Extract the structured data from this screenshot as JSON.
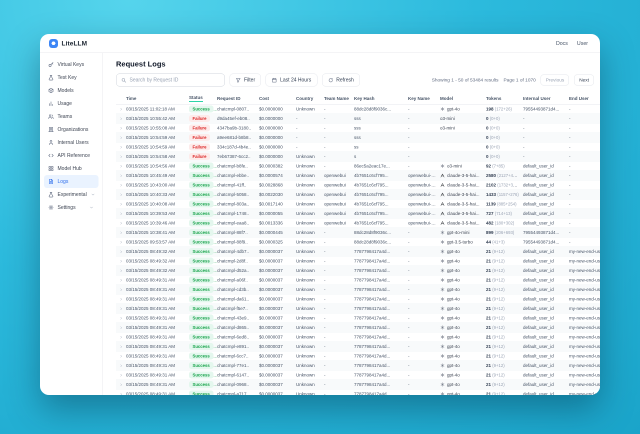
{
  "colors": {
    "accent_blue": "#2f6feb",
    "success_green": "#16a34a",
    "failure_red": "#dc2626",
    "background_teal": "#2cbadd"
  },
  "navbar": {
    "brand": "LiteLLM",
    "docs": "Docs",
    "user": "User"
  },
  "sidebar": {
    "items": [
      {
        "label": "Virtual Keys",
        "icon": "key"
      },
      {
        "label": "Test Key",
        "icon": "beaker"
      },
      {
        "label": "Models",
        "icon": "box"
      },
      {
        "label": "Usage",
        "icon": "chart"
      },
      {
        "label": "Teams",
        "icon": "users"
      },
      {
        "label": "Organizations",
        "icon": "building"
      },
      {
        "label": "Internal Users",
        "icon": "user"
      },
      {
        "label": "API Reference",
        "icon": "code"
      },
      {
        "label": "Model Hub",
        "icon": "grid"
      },
      {
        "label": "Logs",
        "icon": "file",
        "selected": true
      },
      {
        "label": "Experimental",
        "icon": "flask",
        "chevron": true
      },
      {
        "label": "Settings",
        "icon": "gear",
        "chevron": true
      }
    ]
  },
  "page": {
    "title": "Request Logs"
  },
  "toolbar": {
    "search_placeholder": "Search by Request ID",
    "search_icon": "search",
    "filter_label": "Filter",
    "filter_icon": "funnel",
    "range_label": "Last 24 Hours",
    "range_icon": "calendar",
    "refresh_label": "Refresh",
    "refresh_icon": "refresh",
    "showing": "Showing 1 - 50 of 53484 results",
    "page_info": "Page 1 of 1070",
    "prev_label": "Previous",
    "next_label": "Next"
  },
  "table": {
    "columns": [
      "Time",
      "Status",
      "Request ID",
      "Cost",
      "Country",
      "Team Name",
      "Key Hash",
      "Key Name",
      "Model",
      "Tokens",
      "Internal User",
      "End User"
    ],
    "sorted_column": "Status",
    "rows": [
      {
        "time": "03/15/2025 11:02:18 AM",
        "status": "Success",
        "request_id": "chatcmpl-0807..",
        "cost": "$0.0000000",
        "country": "Unknown",
        "team": "-",
        "key_hash": "88dc28d8f9036c...",
        "key_name": "-",
        "model": "gpt-4o",
        "provider": "openai",
        "tokens": "198",
        "tokens_detail": "(172+26)",
        "internal_user": "79554493871d4...",
        "end_user": "-"
      },
      {
        "time": "03/15/2025 10:55:42 AM",
        "status": "Failure",
        "request_id": "d9da45ef-eb08..",
        "cost": "$0.0000000",
        "country": "-",
        "team": "-",
        "key_hash": "sss",
        "key_name": "-",
        "model": "o3-mini",
        "provider": "none",
        "tokens": "0",
        "tokens_detail": "(0+0)",
        "internal_user": "-",
        "end_user": "-"
      },
      {
        "time": "03/15/2025 10:55:08 AM",
        "status": "Failure",
        "request_id": "4347ba9b-3180..",
        "cost": "$0.0000000",
        "country": "-",
        "team": "-",
        "key_hash": "sss",
        "key_name": "-",
        "model": "o3-mini",
        "provider": "none",
        "tokens": "0",
        "tokens_detail": "(0+0)",
        "internal_user": "-",
        "end_user": "-"
      },
      {
        "time": "03/15/2025 10:54:59 AM",
        "status": "Failure",
        "request_id": "a9ee681d-b8b8..",
        "cost": "$0.0000000",
        "country": "-",
        "team": "-",
        "key_hash": "sss",
        "key_name": "-",
        "model": "",
        "provider": "none",
        "tokens": "0",
        "tokens_detail": "(0+0)",
        "internal_user": "-",
        "end_user": "-"
      },
      {
        "time": "03/15/2025 10:54:59 AM",
        "status": "Failure",
        "request_id": "334c187d-4b4e..",
        "cost": "$0.0000000",
        "country": "-",
        "team": "-",
        "key_hash": "ss",
        "key_name": "-",
        "model": "",
        "provider": "none",
        "tokens": "0",
        "tokens_detail": "(0+0)",
        "internal_user": "-",
        "end_user": "-"
      },
      {
        "time": "03/15/2025 10:54:58 AM",
        "status": "Failure",
        "request_id": "7eb67387-6cc2..",
        "cost": "$0.0000000",
        "country": "Unknown",
        "team": "-",
        "key_hash": "s",
        "key_name": "-",
        "model": "",
        "provider": "none",
        "tokens": "0",
        "tokens_detail": "(0+0)",
        "internal_user": "-",
        "end_user": "-"
      },
      {
        "time": "03/15/2025 10:54:56 AM",
        "status": "Success",
        "request_id": "chatcmpl-b8fe..",
        "cost": "$0.0000382",
        "country": "Unknown",
        "team": "-",
        "key_hash": "86ec5a2eac17e...",
        "key_name": "-",
        "model": "o3-mini",
        "provider": "openai",
        "tokens": "92",
        "tokens_detail": "(7+85)",
        "internal_user": "default_user_id",
        "end_user": "-"
      },
      {
        "time": "03/15/2025 10:45:49 AM",
        "status": "Success",
        "request_id": "chatcmpl-ebbe..",
        "cost": "$0.0000574",
        "country": "Unknown",
        "team": "openwebui",
        "key_hash": "4b7651c6cf795...",
        "key_name": "openwebui-key-2",
        "model": "claude-3-5-hai...",
        "provider": "anthropic",
        "tokens": "2580",
        "tokens_detail": "(2127+453)",
        "internal_user": "default_user_id",
        "end_user": "-"
      },
      {
        "time": "03/15/2025 10:43:00 AM",
        "status": "Success",
        "request_id": "chatcmpl-41ff..",
        "cost": "$0.0028868",
        "country": "Unknown",
        "team": "openwebui",
        "key_hash": "4b7651c6cf795...",
        "key_name": "openwebui-key-2",
        "model": "claude-3-5-hai...",
        "provider": "anthropic",
        "tokens": "2102",
        "tokens_detail": "(1732+370)",
        "internal_user": "default_user_id",
        "end_user": "-"
      },
      {
        "time": "03/15/2025 10:40:33 AM",
        "status": "Success",
        "request_id": "chatcmpl-5058..",
        "cost": "$0.0022030",
        "country": "Unknown",
        "team": "openwebui",
        "key_hash": "4b7651c6cf795...",
        "key_name": "openwebui-key-2",
        "model": "claude-3-5-hai...",
        "provider": "anthropic",
        "tokens": "1433",
        "tokens_detail": "(1157+276)",
        "internal_user": "default_user_id",
        "end_user": "-"
      },
      {
        "time": "03/15/2025 10:40:08 AM",
        "status": "Success",
        "request_id": "chatcmpl-803a..",
        "cost": "$0.0017140",
        "country": "Unknown",
        "team": "openwebui",
        "key_hash": "4b7651c6cf795...",
        "key_name": "openwebui-key-2",
        "model": "claude-3-5-hai...",
        "provider": "anthropic",
        "tokens": "1139",
        "tokens_detail": "(885+254)",
        "internal_user": "default_user_id",
        "end_user": "-"
      },
      {
        "time": "03/15/2025 10:39:53 AM",
        "status": "Success",
        "request_id": "chatcmpl-1748..",
        "cost": "$0.0000055",
        "country": "Unknown",
        "team": "openwebui",
        "key_hash": "4b7651c6cf795...",
        "key_name": "openwebui-key-2",
        "model": "claude-3-5-hai...",
        "provider": "anthropic",
        "tokens": "727",
        "tokens_detail": "(714+13)",
        "internal_user": "default_user_id",
        "end_user": "-"
      },
      {
        "time": "03/15/2025 10:39:46 AM",
        "status": "Success",
        "request_id": "chatcmpl-eaa8..",
        "cost": "$0.0013336",
        "country": "Unknown",
        "team": "openwebui",
        "key_hash": "4b7651c6cf795...",
        "key_name": "openwebui-key-2",
        "model": "claude-3-5-hai...",
        "provider": "anthropic",
        "tokens": "482",
        "tokens_detail": "(180+302)",
        "internal_user": "default_user_id",
        "end_user": "-"
      },
      {
        "time": "03/15/2025 10:38:41 AM",
        "status": "Success",
        "request_id": "chatcmpl-88f7..",
        "cost": "$0.0000445",
        "country": "Unknown",
        "team": "-",
        "key_hash": "88dc28d8f9036c...",
        "key_name": "-",
        "model": "gpt-4o-mini",
        "provider": "openai",
        "tokens": "899",
        "tokens_detail": "(206+693)",
        "internal_user": "79554493871d4...",
        "end_user": "-"
      },
      {
        "time": "03/15/2025 09:53:57 AM",
        "status": "Success",
        "request_id": "chatcmpl-88f9..",
        "cost": "$0.0000325",
        "country": "Unknown",
        "team": "-",
        "key_hash": "88dc28d8f9036c...",
        "key_name": "-",
        "model": "gpt-3.5-turbo",
        "provider": "openai",
        "tokens": "44",
        "tokens_detail": "(41+3)",
        "internal_user": "79554493871d4...",
        "end_user": "-"
      },
      {
        "time": "03/15/2025 08:49:32 AM",
        "status": "Success",
        "request_id": "chatcmpl-4db7..",
        "cost": "$0.0000037",
        "country": "Unknown",
        "team": "-",
        "key_hash": "7787798417a4d...",
        "key_name": "-",
        "model": "gpt-4o",
        "provider": "openai",
        "tokens": "21",
        "tokens_detail": "(9+12)",
        "internal_user": "default_user_id",
        "end_user": "my-new-end-user-1"
      },
      {
        "time": "03/15/2025 08:49:32 AM",
        "status": "Success",
        "request_id": "chatcmpl-2d8f..",
        "cost": "$0.0000037",
        "country": "Unknown",
        "team": "-",
        "key_hash": "7787798417a4d...",
        "key_name": "-",
        "model": "gpt-4o",
        "provider": "openai",
        "tokens": "21",
        "tokens_detail": "(9+12)",
        "internal_user": "default_user_id",
        "end_user": "my-new-end-user-1"
      },
      {
        "time": "03/15/2025 08:49:32 AM",
        "status": "Success",
        "request_id": "chatcmpl-d52a..",
        "cost": "$0.0000037",
        "country": "Unknown",
        "team": "-",
        "key_hash": "7787798417a4d...",
        "key_name": "-",
        "model": "gpt-4o",
        "provider": "openai",
        "tokens": "21",
        "tokens_detail": "(9+12)",
        "internal_user": "default_user_id",
        "end_user": "my-new-end-user-1"
      },
      {
        "time": "03/15/2025 08:49:31 AM",
        "status": "Success",
        "request_id": "chatcmpl-a06f..",
        "cost": "$0.0000037",
        "country": "Unknown",
        "team": "-",
        "key_hash": "7787798417a4d...",
        "key_name": "-",
        "model": "gpt-4o",
        "provider": "openai",
        "tokens": "21",
        "tokens_detail": "(9+12)",
        "internal_user": "default_user_id",
        "end_user": "my-new-end-user-1"
      },
      {
        "time": "03/15/2025 08:49:31 AM",
        "status": "Success",
        "request_id": "chatcmpl-cd3b..",
        "cost": "$0.0000037",
        "country": "Unknown",
        "team": "-",
        "key_hash": "7787798417a4d...",
        "key_name": "-",
        "model": "gpt-4o",
        "provider": "openai",
        "tokens": "21",
        "tokens_detail": "(9+12)",
        "internal_user": "default_user_id",
        "end_user": "my-new-end-user-1"
      },
      {
        "time": "03/15/2025 08:49:31 AM",
        "status": "Success",
        "request_id": "chatcmpl-da61..",
        "cost": "$0.0000037",
        "country": "Unknown",
        "team": "-",
        "key_hash": "7787798417a4d...",
        "key_name": "-",
        "model": "gpt-4o",
        "provider": "openai",
        "tokens": "21",
        "tokens_detail": "(9+12)",
        "internal_user": "default_user_id",
        "end_user": "my-new-end-user-1"
      },
      {
        "time": "03/15/2025 08:49:31 AM",
        "status": "Success",
        "request_id": "chatcmpl-f5e7..",
        "cost": "$0.0000037",
        "country": "Unknown",
        "team": "-",
        "key_hash": "7787798417a4d...",
        "key_name": "-",
        "model": "gpt-4o",
        "provider": "openai",
        "tokens": "21",
        "tokens_detail": "(9+12)",
        "internal_user": "default_user_id",
        "end_user": "my-new-end-user-1"
      },
      {
        "time": "03/15/2025 08:49:31 AM",
        "status": "Success",
        "request_id": "chatcmpl-43e9..",
        "cost": "$0.0000037",
        "country": "Unknown",
        "team": "-",
        "key_hash": "7787798417a4d...",
        "key_name": "-",
        "model": "gpt-4o",
        "provider": "openai",
        "tokens": "21",
        "tokens_detail": "(9+12)",
        "internal_user": "default_user_id",
        "end_user": "my-new-end-user-1"
      },
      {
        "time": "03/15/2025 08:49:31 AM",
        "status": "Success",
        "request_id": "chatcmpl-d865..",
        "cost": "$0.0000037",
        "country": "Unknown",
        "team": "-",
        "key_hash": "7787798417a4d...",
        "key_name": "-",
        "model": "gpt-4o",
        "provider": "openai",
        "tokens": "21",
        "tokens_detail": "(9+12)",
        "internal_user": "default_user_id",
        "end_user": "my-new-end-user-1"
      },
      {
        "time": "03/15/2025 08:49:31 AM",
        "status": "Success",
        "request_id": "chatcmpl-6ed8..",
        "cost": "$0.0000037",
        "country": "Unknown",
        "team": "-",
        "key_hash": "7787798417a4d...",
        "key_name": "-",
        "model": "gpt-4o",
        "provider": "openai",
        "tokens": "21",
        "tokens_detail": "(9+12)",
        "internal_user": "default_user_id",
        "end_user": "my-new-end-user-1"
      },
      {
        "time": "03/15/2025 08:49:31 AM",
        "status": "Success",
        "request_id": "chatcmpl-e891..",
        "cost": "$0.0000037",
        "country": "Unknown",
        "team": "-",
        "key_hash": "7787798417a4d...",
        "key_name": "-",
        "model": "gpt-4o",
        "provider": "openai",
        "tokens": "21",
        "tokens_detail": "(9+12)",
        "internal_user": "default_user_id",
        "end_user": "my-new-end-user-1"
      },
      {
        "time": "03/15/2025 08:49:31 AM",
        "status": "Success",
        "request_id": "chatcmpl-6cc7..",
        "cost": "$0.0000037",
        "country": "Unknown",
        "team": "-",
        "key_hash": "7787798417a4d...",
        "key_name": "-",
        "model": "gpt-4o",
        "provider": "openai",
        "tokens": "21",
        "tokens_detail": "(9+12)",
        "internal_user": "default_user_id",
        "end_user": "my-new-end-user-1"
      },
      {
        "time": "03/15/2025 08:49:31 AM",
        "status": "Success",
        "request_id": "chatcmpl-77e1..",
        "cost": "$0.0000037",
        "country": "Unknown",
        "team": "-",
        "key_hash": "7787798417a4d...",
        "key_name": "-",
        "model": "gpt-4o",
        "provider": "openai",
        "tokens": "21",
        "tokens_detail": "(9+12)",
        "internal_user": "default_user_id",
        "end_user": "my-new-end-user-1"
      },
      {
        "time": "03/15/2025 08:49:31 AM",
        "status": "Success",
        "request_id": "chatcmpl-6147..",
        "cost": "$0.0000037",
        "country": "Unknown",
        "team": "-",
        "key_hash": "7787798417a4d...",
        "key_name": "-",
        "model": "gpt-4o",
        "provider": "openai",
        "tokens": "21",
        "tokens_detail": "(9+12)",
        "internal_user": "default_user_id",
        "end_user": "my-new-end-user-1"
      },
      {
        "time": "03/15/2025 08:49:31 AM",
        "status": "Success",
        "request_id": "chatcmpl-0968..",
        "cost": "$0.0000037",
        "country": "Unknown",
        "team": "-",
        "key_hash": "7787798417a4d...",
        "key_name": "-",
        "model": "gpt-4o",
        "provider": "openai",
        "tokens": "21",
        "tokens_detail": "(9+12)",
        "internal_user": "default_user_id",
        "end_user": "my-new-end-user-1"
      },
      {
        "time": "03/15/2025 08:49:31 AM",
        "status": "Success",
        "request_id": "chatcmpl-a717..",
        "cost": "$0.0000037",
        "country": "Unknown",
        "team": "-",
        "key_hash": "7787798417a4d...",
        "key_name": "-",
        "model": "gpt-4o",
        "provider": "openai",
        "tokens": "21",
        "tokens_detail": "(9+12)",
        "internal_user": "default_user_id",
        "end_user": "my-new-end-user-1"
      }
    ]
  }
}
